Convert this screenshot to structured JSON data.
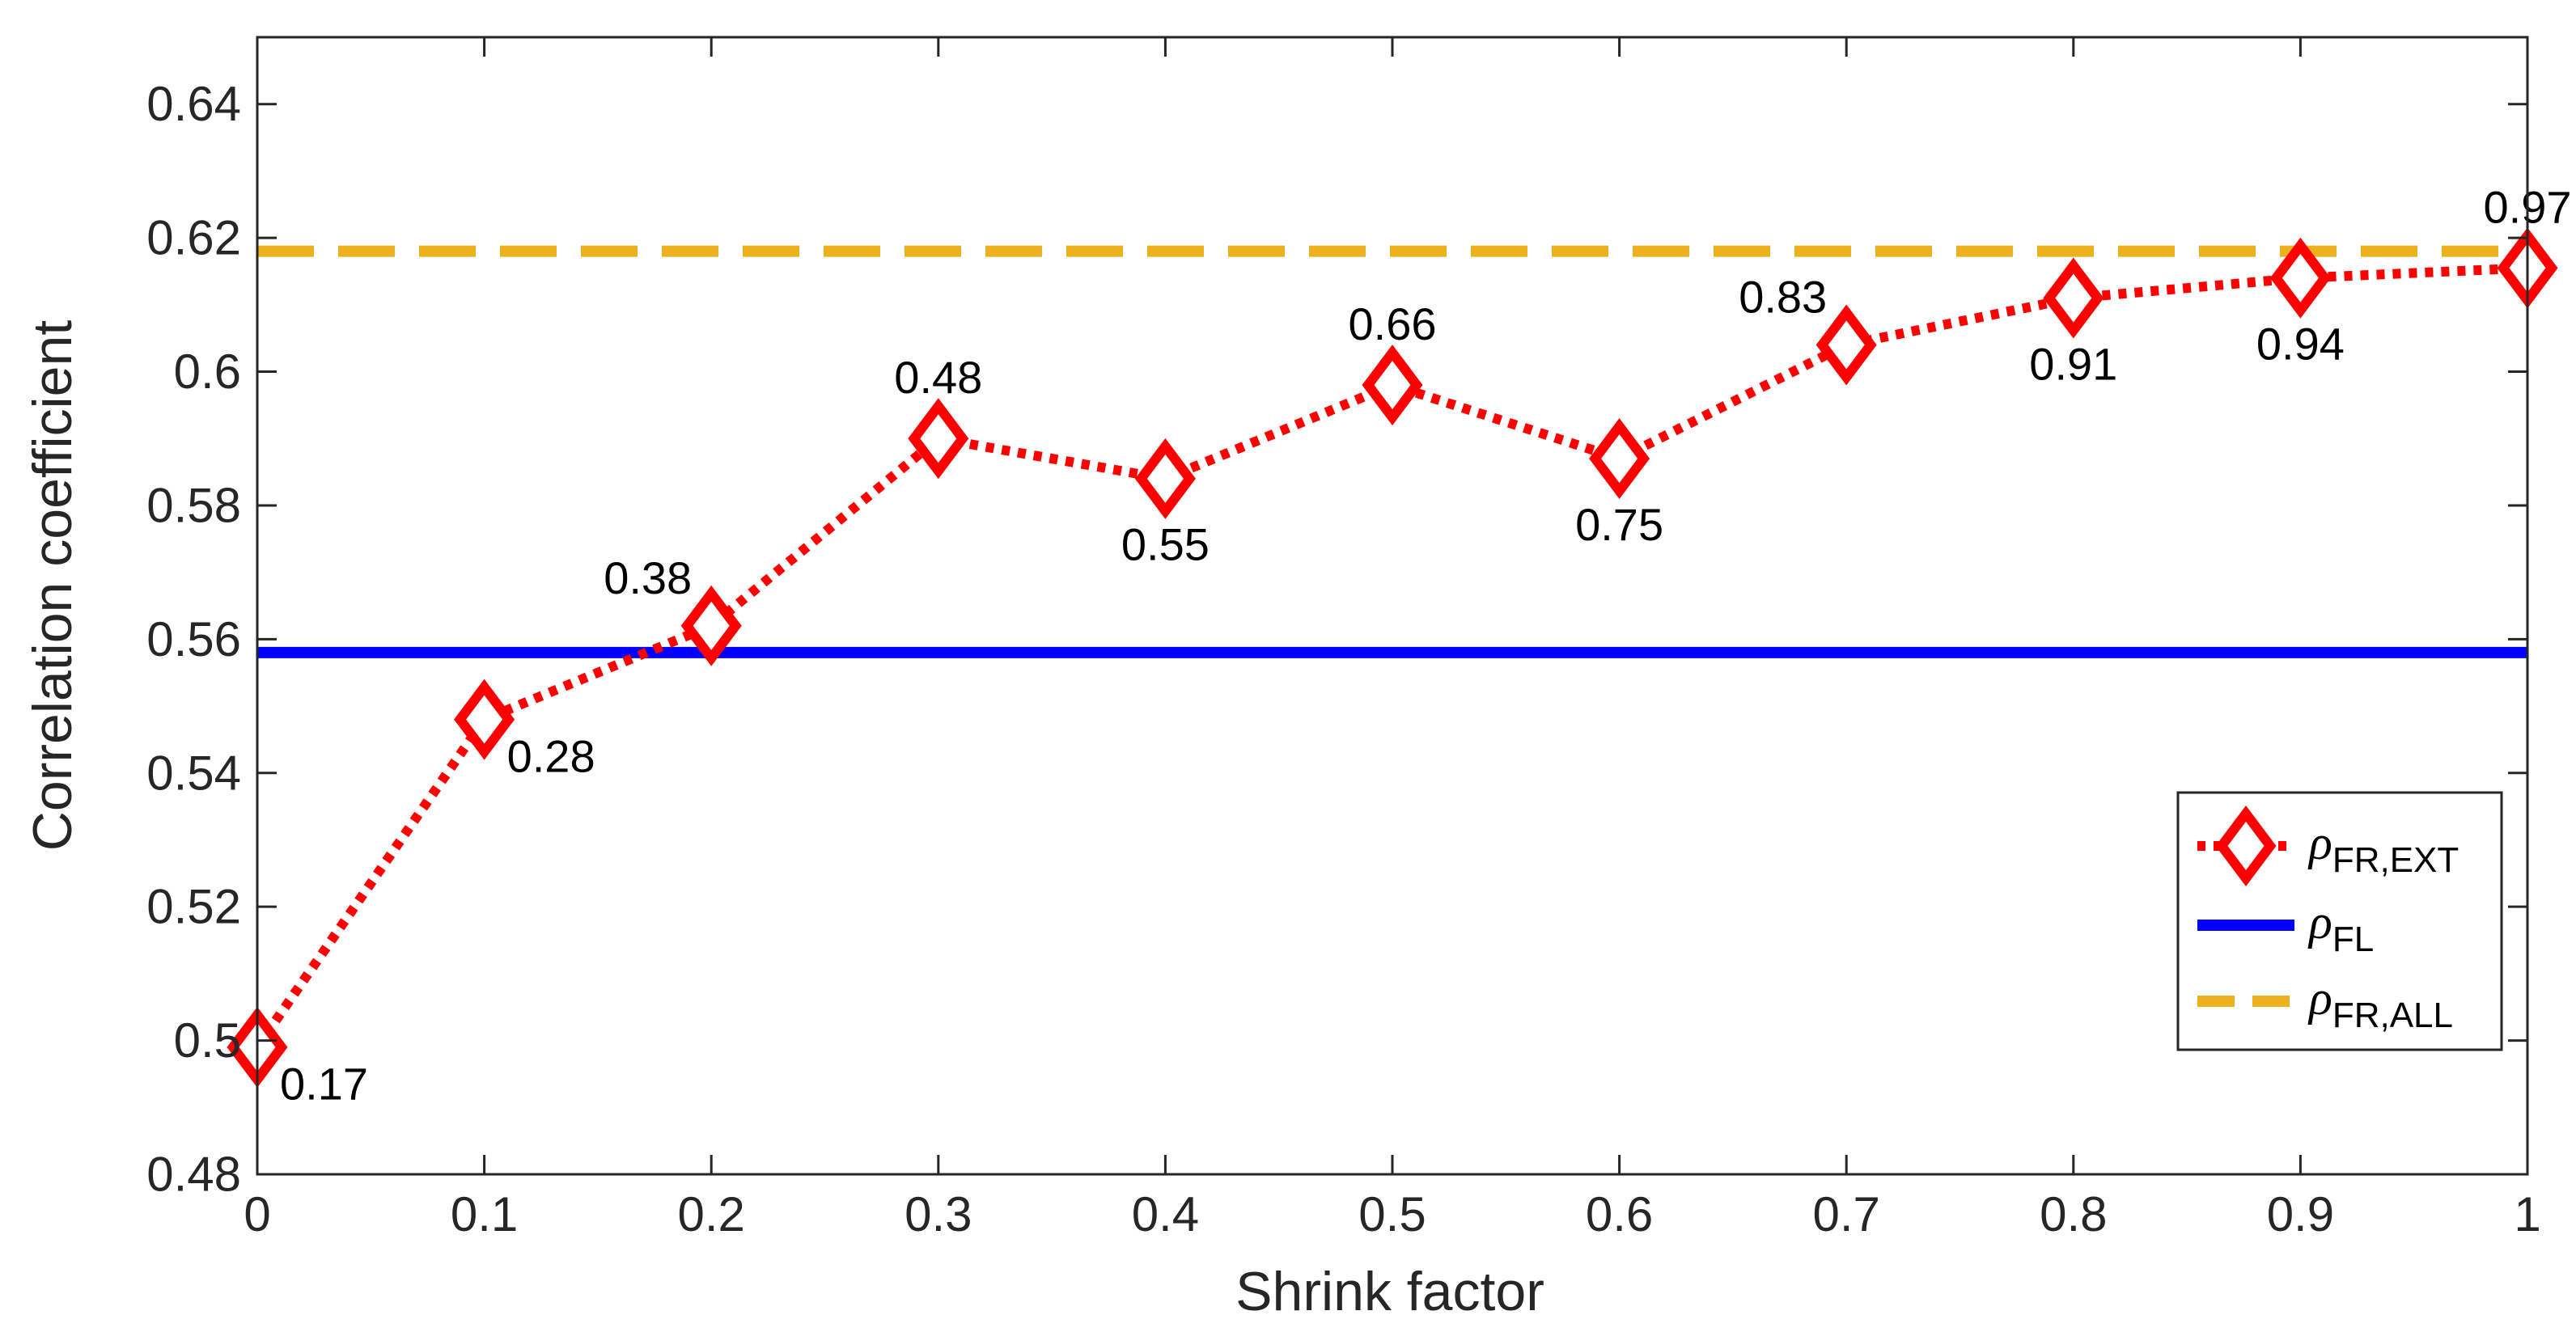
{
  "chart_data": {
    "type": "line",
    "title": "",
    "xlabel": "Shrink factor",
    "ylabel": "Correlation coefficient",
    "xlim": [
      0,
      1
    ],
    "ylim": [
      0.48,
      0.65
    ],
    "x_ticks": [
      0,
      0.1,
      0.2,
      0.3,
      0.4,
      0.5,
      0.6,
      0.7,
      0.8,
      0.9,
      1
    ],
    "x_tick_labels": [
      "0",
      "0.1",
      "0.2",
      "0.3",
      "0.4",
      "0.5",
      "0.6",
      "0.7",
      "0.8",
      "0.9",
      "1"
    ],
    "y_ticks": [
      0.48,
      0.5,
      0.52,
      0.54,
      0.56,
      0.58,
      0.6,
      0.62,
      0.64
    ],
    "y_tick_labels": [
      "0.48",
      "0.5",
      "0.52",
      "0.54",
      "0.56",
      "0.58",
      "0.6",
      "0.62",
      "0.64"
    ],
    "grid": false,
    "legend_position": "bottom-right",
    "series": [
      {
        "name": "ρFR,EXT",
        "legend_symbol": "ρ",
        "legend_subscript": "FR,EXT",
        "style": "dotted-diamond",
        "color": "#ff0000",
        "x": [
          0,
          0.1,
          0.2,
          0.3,
          0.4,
          0.5,
          0.6,
          0.7,
          0.8,
          0.9,
          1
        ],
        "values": [
          0.499,
          0.548,
          0.562,
          0.59,
          0.584,
          0.598,
          0.587,
          0.604,
          0.611,
          0.614,
          0.6155
        ],
        "point_labels": [
          "0.17",
          "0.28",
          "0.38",
          "0.48",
          "0.55",
          "0.66",
          "0.75",
          "0.83",
          "0.91",
          "0.94",
          "0.97"
        ],
        "point_label_positions": [
          "below-right",
          "below-right",
          "above-left",
          "above",
          "below",
          "above",
          "below",
          "above-left",
          "below",
          "below",
          "above"
        ]
      },
      {
        "name": "ρFL",
        "legend_symbol": "ρ",
        "legend_subscript": "FL",
        "style": "solid",
        "color": "#0000ff",
        "constant": 0.558
      },
      {
        "name": "ρFR,ALL",
        "legend_symbol": "ρ",
        "legend_subscript": "FR,ALL",
        "style": "dashed",
        "color": "#edb120",
        "constant": 0.618
      }
    ]
  }
}
